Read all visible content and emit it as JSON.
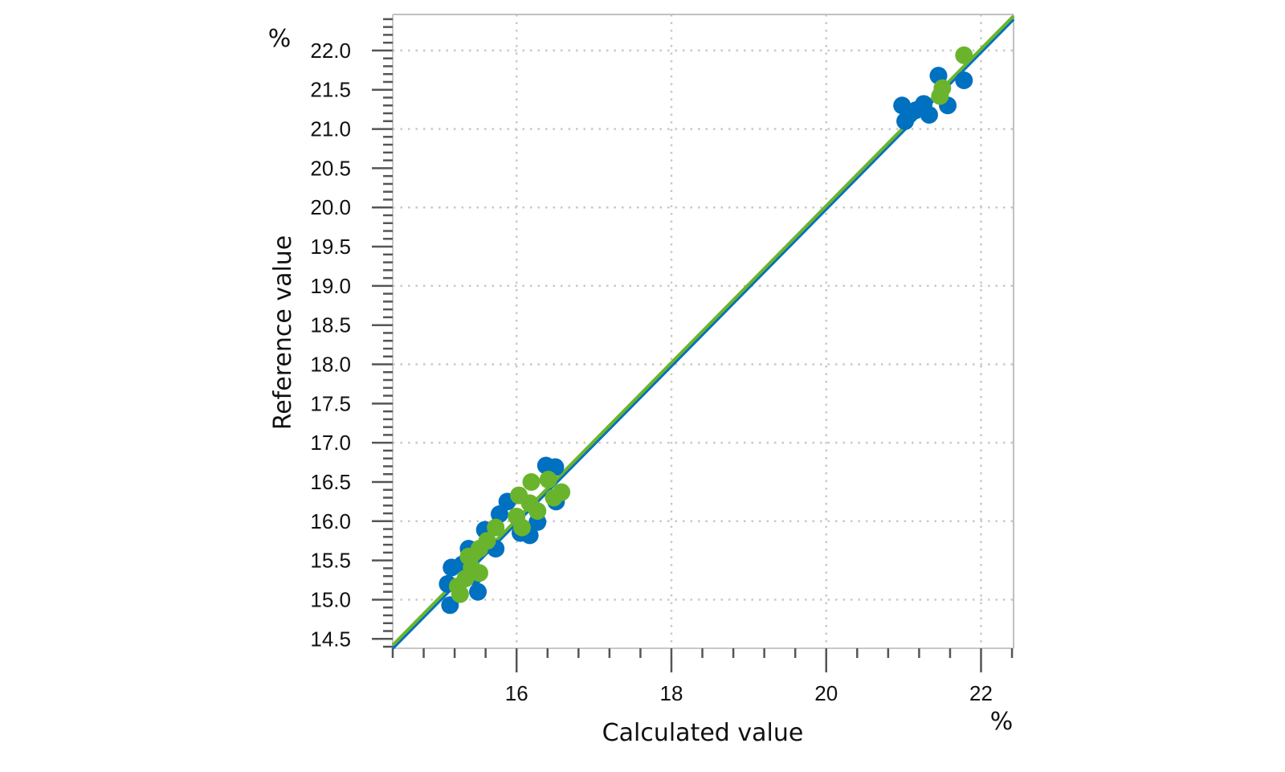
{
  "chart_data": {
    "type": "scatter",
    "title": "",
    "xlabel": "Calculated value",
    "ylabel": "Reference value",
    "x_unit": "%",
    "y_unit": "%",
    "xlim": [
      14.4,
      22.42
    ],
    "ylim": [
      14.38,
      22.46
    ],
    "x_ticks": [
      "16",
      "18",
      "20",
      "22"
    ],
    "x_tick_values": [
      16,
      18,
      20,
      22
    ],
    "y_ticks": [
      "14.5",
      "15.0",
      "15.5",
      "16.0",
      "16.5",
      "17.0",
      "17.5",
      "18.0",
      "18.5",
      "19.0",
      "19.5",
      "20.0",
      "20.5",
      "21.0",
      "21.5",
      "22.0"
    ],
    "y_tick_values": [
      14.5,
      15.0,
      15.5,
      16.0,
      16.5,
      17.0,
      17.5,
      18.0,
      18.5,
      19.0,
      19.5,
      20.0,
      20.5,
      21.0,
      21.5,
      22.0
    ],
    "grid": true,
    "legend": "none",
    "series": [
      {
        "color": "#0070c0",
        "fit_line": {
          "slope": 1.0,
          "intercept": -0.02
        },
        "points": [
          [
            15.14,
            14.93
          ],
          [
            15.11,
            15.2
          ],
          [
            15.16,
            15.41
          ],
          [
            15.5,
            15.1
          ],
          [
            15.38,
            15.65
          ],
          [
            15.59,
            15.89
          ],
          [
            15.73,
            15.65
          ],
          [
            15.78,
            16.09
          ],
          [
            15.88,
            16.25
          ],
          [
            16.17,
            15.82
          ],
          [
            16.27,
            15.99
          ],
          [
            16.38,
            16.71
          ],
          [
            16.5,
            16.69
          ],
          [
            16.51,
            16.25
          ],
          [
            15.45,
            15.3
          ],
          [
            15.3,
            15.45
          ],
          [
            16.05,
            15.85
          ],
          [
            20.98,
            21.3
          ],
          [
            21.02,
            21.1
          ],
          [
            21.16,
            21.24
          ],
          [
            21.26,
            21.32
          ],
          [
            21.33,
            21.18
          ],
          [
            21.45,
            21.68
          ],
          [
            21.57,
            21.3
          ],
          [
            21.78,
            21.62
          ]
        ]
      },
      {
        "color": "#6ab42d",
        "fit_line": {
          "slope": 1.0,
          "intercept": 0.02
        },
        "points": [
          [
            15.27,
            15.07
          ],
          [
            15.24,
            15.17
          ],
          [
            15.34,
            15.27
          ],
          [
            15.52,
            15.34
          ],
          [
            15.42,
            15.41
          ],
          [
            15.38,
            15.55
          ],
          [
            15.52,
            15.65
          ],
          [
            15.62,
            15.75
          ],
          [
            15.73,
            15.92
          ],
          [
            16.07,
            15.92
          ],
          [
            16.0,
            16.06
          ],
          [
            16.27,
            16.13
          ],
          [
            16.17,
            16.23
          ],
          [
            16.03,
            16.33
          ],
          [
            16.48,
            16.3
          ],
          [
            16.58,
            16.37
          ],
          [
            16.19,
            16.5
          ],
          [
            16.41,
            16.53
          ],
          [
            21.47,
            21.42
          ],
          [
            21.5,
            21.52
          ],
          [
            21.78,
            21.94
          ]
        ]
      }
    ]
  }
}
